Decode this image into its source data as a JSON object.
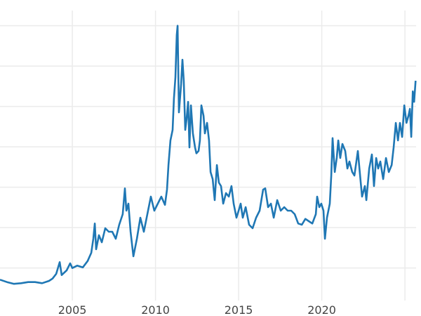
{
  "chart_data": {
    "type": "line",
    "title": "",
    "xlabel": "",
    "ylabel": "",
    "xlim": [
      2000.65,
      2025.67
    ],
    "ylim": [
      2.3,
      50.9
    ],
    "x_ticks": [
      2005,
      2010,
      2015,
      2020,
      2025
    ],
    "x_tick_labels": [
      "2005",
      "2010",
      "2015",
      "2020",
      ""
    ],
    "y_gridlines": [
      6.9,
      13.8,
      20.7,
      27.6,
      34.5,
      41.4,
      48.3
    ],
    "grid": true,
    "line_color": "#1f77b4",
    "grid_color": "#ebebeb",
    "x": [
      2000.65,
      2001.07,
      2001.49,
      2001.92,
      2002.34,
      2002.76,
      2003.18,
      2003.6,
      2003.81,
      2004.03,
      2004.24,
      2004.36,
      2004.66,
      2004.87,
      2005.0,
      2005.29,
      2005.63,
      2005.92,
      2006.14,
      2006.26,
      2006.35,
      2006.43,
      2006.6,
      2006.77,
      2006.98,
      2007.19,
      2007.4,
      2007.61,
      2007.82,
      2008.03,
      2008.16,
      2008.25,
      2008.37,
      2008.5,
      2008.67,
      2008.88,
      2009.09,
      2009.3,
      2009.51,
      2009.72,
      2009.93,
      2010.14,
      2010.35,
      2010.57,
      2010.69,
      2010.78,
      2010.9,
      2011.03,
      2011.11,
      2011.2,
      2011.28,
      2011.33,
      2011.41,
      2011.54,
      2011.62,
      2011.7,
      2011.79,
      2011.87,
      2011.96,
      2012.04,
      2012.13,
      2012.25,
      2012.38,
      2012.46,
      2012.59,
      2012.67,
      2012.76,
      2012.89,
      2012.97,
      2013.1,
      2013.22,
      2013.31,
      2013.44,
      2013.56,
      2013.69,
      2013.81,
      2013.94,
      2014.07,
      2014.24,
      2014.41,
      2014.57,
      2014.7,
      2014.87,
      2015.0,
      2015.12,
      2015.25,
      2015.42,
      2015.63,
      2015.84,
      2016.05,
      2016.26,
      2016.47,
      2016.6,
      2016.77,
      2016.94,
      2017.11,
      2017.32,
      2017.53,
      2017.74,
      2017.95,
      2018.16,
      2018.37,
      2018.58,
      2018.8,
      2019.01,
      2019.22,
      2019.43,
      2019.64,
      2019.72,
      2019.85,
      2019.97,
      2020.1,
      2020.19,
      2020.31,
      2020.48,
      2020.57,
      2020.65,
      2020.78,
      2020.9,
      2020.99,
      2021.11,
      2021.24,
      2021.41,
      2021.54,
      2021.66,
      2021.83,
      2021.96,
      2022.17,
      2022.34,
      2022.42,
      2022.59,
      2022.68,
      2022.85,
      2023.01,
      2023.14,
      2023.27,
      2023.39,
      2023.52,
      2023.69,
      2023.86,
      2024.03,
      2024.2,
      2024.32,
      2024.45,
      2024.58,
      2024.7,
      2024.83,
      2024.96,
      2025.09,
      2025.21,
      2025.3,
      2025.38,
      2025.47,
      2025.55,
      2025.64
    ],
    "y": [
      4.9,
      4.5,
      4.2,
      4.3,
      4.5,
      4.5,
      4.3,
      4.7,
      5.1,
      5.9,
      7.9,
      5.7,
      6.5,
      7.7,
      6.9,
      7.3,
      7.0,
      8.1,
      9.5,
      11.9,
      14.5,
      10.1,
      12.5,
      11.3,
      13.7,
      13.1,
      13.1,
      11.9,
      14.3,
      16.1,
      20.5,
      16.7,
      17.9,
      13.1,
      8.9,
      11.9,
      15.5,
      13.1,
      16.1,
      19.1,
      16.7,
      17.9,
      19.1,
      17.7,
      20.3,
      24.5,
      28.7,
      30.5,
      35.9,
      39.5,
      46.7,
      48.3,
      33.5,
      38.3,
      42.5,
      38.9,
      30.5,
      32.3,
      35.3,
      27.5,
      34.7,
      29.9,
      27.5,
      26.5,
      26.9,
      28.7,
      34.7,
      32.9,
      29.9,
      31.7,
      28.7,
      23.3,
      22.1,
      18.5,
      24.5,
      21.5,
      20.9,
      17.9,
      19.7,
      19.1,
      20.9,
      17.9,
      15.5,
      16.7,
      17.9,
      15.5,
      17.3,
      14.3,
      13.7,
      15.5,
      16.7,
      20.3,
      20.5,
      17.3,
      17.9,
      15.5,
      18.5,
      16.7,
      17.3,
      16.7,
      16.7,
      16.1,
      14.5,
      14.3,
      15.3,
      14.9,
      14.5,
      16.1,
      19.1,
      17.3,
      17.9,
      16.7,
      11.9,
      15.5,
      17.9,
      22.7,
      29.1,
      23.3,
      25.7,
      28.7,
      25.7,
      28.1,
      26.9,
      23.9,
      25.1,
      23.3,
      22.7,
      26.9,
      21.5,
      19.1,
      20.9,
      18.5,
      23.9,
      26.3,
      20.9,
      25.7,
      23.9,
      25.1,
      22.1,
      25.7,
      23.3,
      24.5,
      27.5,
      31.7,
      28.7,
      31.7,
      29.3,
      34.7,
      31.7,
      32.9,
      34.1,
      29.3,
      37.1,
      35.3,
      38.9
    ]
  }
}
